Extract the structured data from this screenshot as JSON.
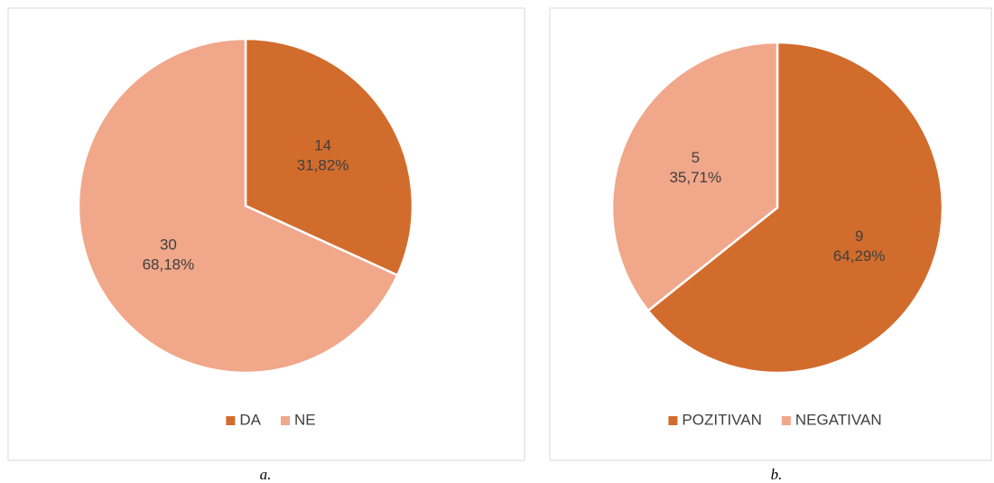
{
  "chart_data": [
    {
      "type": "pie",
      "categories": [
        "DA",
        "NE"
      ],
      "values": [
        14,
        30
      ],
      "percentages": [
        31.82,
        68.18
      ],
      "percentage_labels": [
        "31,82%",
        "68,18%"
      ],
      "colors": [
        "#D26C2C",
        "#F1A78A"
      ],
      "legend": "bottom",
      "caption": "a."
    },
    {
      "type": "pie",
      "categories": [
        "POZITIVAN",
        "NEGATIVAN"
      ],
      "values": [
        9,
        5
      ],
      "percentages": [
        64.29,
        35.71
      ],
      "percentage_labels": [
        "64,29%",
        "35,71%"
      ],
      "colors": [
        "#D26C2C",
        "#F1A78A"
      ],
      "legend": "bottom",
      "caption": "b."
    }
  ]
}
